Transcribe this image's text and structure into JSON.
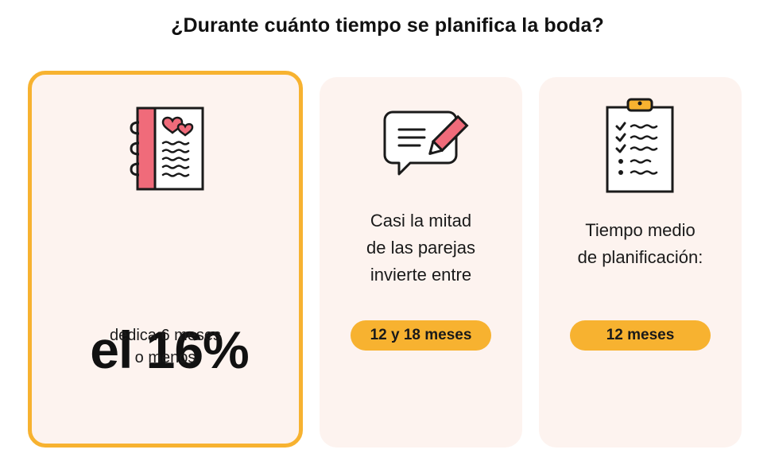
{
  "title": "¿Durante cuánto tiempo se planifica la boda?",
  "cards": [
    {
      "icon": "notebook-hearts-icon",
      "stat": "el 16%",
      "text_lines": [
        "dedica 6 meses",
        "o menos"
      ]
    },
    {
      "icon": "speech-bubble-pencil-icon",
      "text_lines": [
        "Casi la mitad",
        "de las parejas",
        "invierte entre"
      ],
      "pill": "12 y 18 meses"
    },
    {
      "icon": "clipboard-checklist-icon",
      "text_lines": [
        "Tiempo medio",
        "de planificación:"
      ],
      "pill": "12 meses"
    }
  ],
  "colors": {
    "accent": "#f7b230",
    "card_bg": "#fdf3ef",
    "heart": "#f06b7a"
  }
}
